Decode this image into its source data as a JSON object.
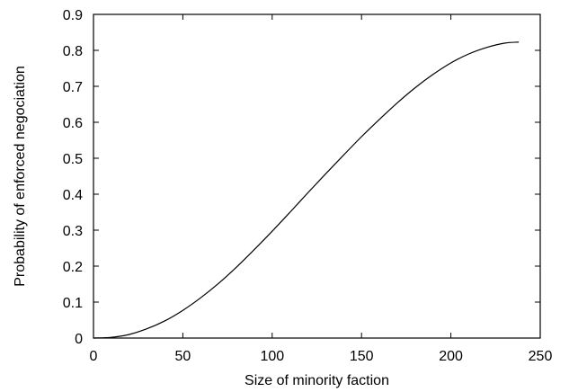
{
  "chart_data": {
    "type": "line",
    "title": "",
    "xlabel": "Size of minority faction",
    "ylabel": "Probability of enforced negociation",
    "xlim": [
      0,
      250
    ],
    "ylim": [
      0,
      0.9
    ],
    "x_ticks": [
      0,
      50,
      100,
      150,
      200,
      250
    ],
    "y_ticks": [
      0,
      0.1,
      0.2,
      0.3,
      0.4,
      0.5,
      0.6,
      0.7,
      0.8,
      0.9
    ],
    "x_tick_labels": [
      "0",
      "50",
      "100",
      "150",
      "200",
      "250"
    ],
    "y_tick_labels": [
      "0",
      "0.1",
      "0.2",
      "0.3",
      "0.4",
      "0.5",
      "0.6",
      "0.7",
      "0.8",
      "0.9"
    ],
    "grid": false,
    "legend": "none",
    "line_color": "#000000",
    "series": [
      {
        "x": [
          0,
          10,
          20,
          30,
          40,
          50,
          60,
          70,
          80,
          90,
          100,
          110,
          120,
          130,
          140,
          150,
          160,
          170,
          180,
          190,
          200,
          210,
          220,
          230,
          238
        ],
        "values": [
          0.0,
          0.002,
          0.01,
          0.026,
          0.048,
          0.077,
          0.112,
          0.152,
          0.197,
          0.246,
          0.297,
          0.35,
          0.404,
          0.457,
          0.509,
          0.56,
          0.608,
          0.654,
          0.696,
          0.733,
          0.765,
          0.79,
          0.808,
          0.82,
          0.823
        ]
      }
    ]
  }
}
